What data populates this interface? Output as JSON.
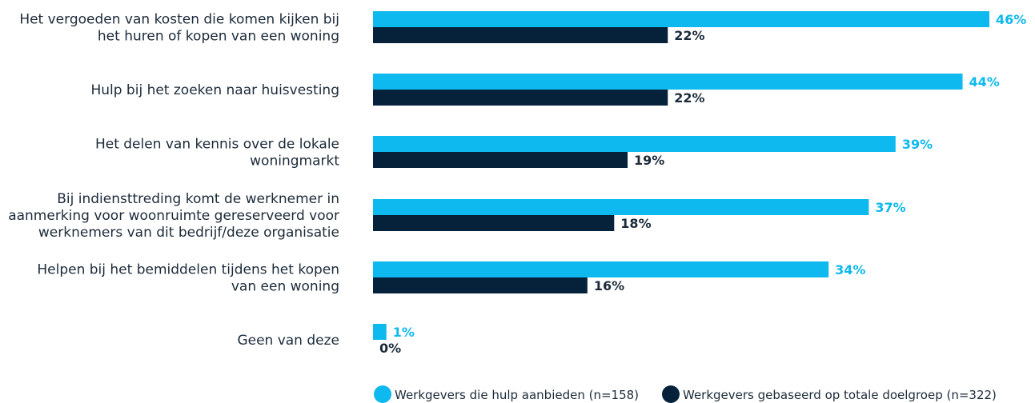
{
  "chart_data": {
    "type": "bar",
    "orientation": "horizontal",
    "categories": [
      [
        "Het vergoeden van kosten die komen kijken bij",
        "het huren of kopen van een woning"
      ],
      [
        "Hulp bij het zoeken naar huisvesting"
      ],
      [
        "Het delen van kennis over de lokale",
        "woningmarkt"
      ],
      [
        "Bij indiensttreding komt de werknemer in",
        "aanmerking voor woonruimte gereserveerd voor",
        "werknemers van dit bedrijf/deze organisatie"
      ],
      [
        "Helpen bij het bemiddelen tijdens het kopen",
        "van een woning"
      ],
      [
        "Geen van deze"
      ]
    ],
    "series": [
      {
        "name": "Werkgevers die hulp aanbieden (n=158)",
        "color": "#0db9ee",
        "values": [
          46,
          44,
          39,
          37,
          34,
          1
        ],
        "labels": [
          "46%",
          "44%",
          "39%",
          "37%",
          "34%",
          "1%"
        ]
      },
      {
        "name": "Werkgevers gebaseerd op totale doelgroep (n=322)",
        "color": "#06223a",
        "values": [
          22,
          22,
          19,
          18,
          16,
          0
        ],
        "labels": [
          "22%",
          "22%",
          "19%",
          "18%",
          "16%",
          "0%"
        ]
      }
    ],
    "xlim": [
      0,
      46
    ],
    "grid": false,
    "legend_position": "bottom"
  }
}
